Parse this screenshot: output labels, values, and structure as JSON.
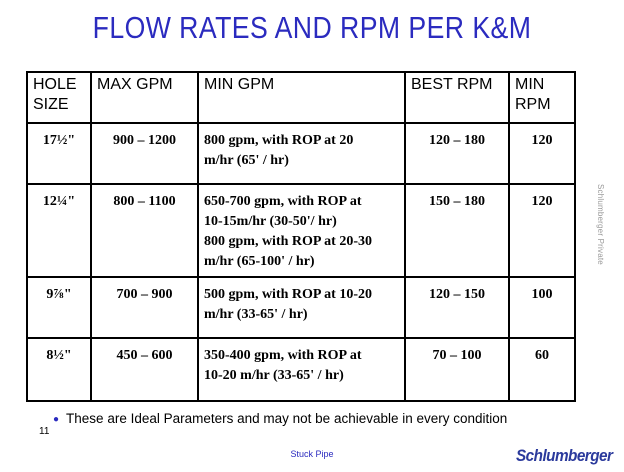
{
  "slide": {
    "title": "FLOW RATES AND RPM PER K&M",
    "side_label": "Schlumberger Private",
    "bullet": "These are Ideal Parameters and may not be achievable in every condition",
    "page_number": "11",
    "footer": "Stuck Pipe",
    "logo": "Schlumberger"
  },
  "table": {
    "headers": {
      "hole_size_1": "HOLE",
      "hole_size_2": "SIZE",
      "max_gpm": "MAX GPM",
      "min_gpm": "MIN GPM",
      "best_rpm": "BEST RPM",
      "min_rpm_1": "MIN",
      "min_rpm_2": "RPM"
    },
    "rows": [
      {
        "hole": "17½\"",
        "max_gpm": "900 – 1200",
        "min_gpm_1": "800 gpm, with ROP at 20",
        "min_gpm_2": "m/hr (65' / hr)",
        "best_rpm": "120 – 180",
        "min_rpm": "120"
      },
      {
        "hole": "12¼\"",
        "max_gpm": "800 – 1100",
        "min_gpm_1": "650-700 gpm, with ROP at",
        "min_gpm_2": "10-15m/hr (30-50'/ hr)",
        "min_gpm_3": "800 gpm, with ROP at 20-30",
        "min_gpm_4": "m/hr (65-100' / hr)",
        "best_rpm": "150 – 180",
        "min_rpm": "120"
      },
      {
        "hole": "9⅞\"",
        "max_gpm": "700 – 900",
        "min_gpm_1": "500 gpm, with ROP at 10-20",
        "min_gpm_2": "m/hr (33-65' / hr)",
        "best_rpm": "120 – 150",
        "min_rpm": "100"
      },
      {
        "hole": "8½\"",
        "max_gpm": "450 – 600",
        "min_gpm_1": "350-400 gpm, with ROP at",
        "min_gpm_2": "10-20 m/hr (33-65' / hr)",
        "best_rpm": "70 – 100",
        "min_rpm": "60"
      }
    ]
  },
  "colors": {
    "title": "#2b2bbf",
    "bullet": "#2b2bbf",
    "footer": "#2b2bbf",
    "logo": "#2b3a9c",
    "side_label": "#9a9a9a"
  }
}
